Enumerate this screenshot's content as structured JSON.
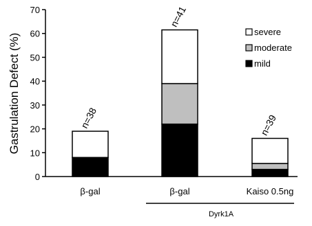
{
  "chart_data": {
    "type": "bar",
    "stacked": true,
    "ylabel": "Gastrulation Defect (%)",
    "ylim": [
      0,
      70
    ],
    "yticks": [
      0,
      10,
      20,
      30,
      40,
      50,
      60,
      70
    ],
    "categories": [
      "β-gal",
      "β-gal",
      "Kaiso 0.5ng"
    ],
    "group_label": "Dyrk1A",
    "n_labels": [
      "n=38",
      "n=41",
      "n=39"
    ],
    "legend_position": "top-right",
    "grid": false,
    "series": [
      {
        "name": "mild",
        "color": "#000000",
        "values": [
          8,
          22,
          3
        ]
      },
      {
        "name": "moderate",
        "color": "#bfbfbf",
        "values": [
          0,
          17,
          2.5
        ]
      },
      {
        "name": "severe",
        "color": "#ffffff",
        "values": [
          11,
          22.5,
          10.5
        ]
      }
    ]
  }
}
